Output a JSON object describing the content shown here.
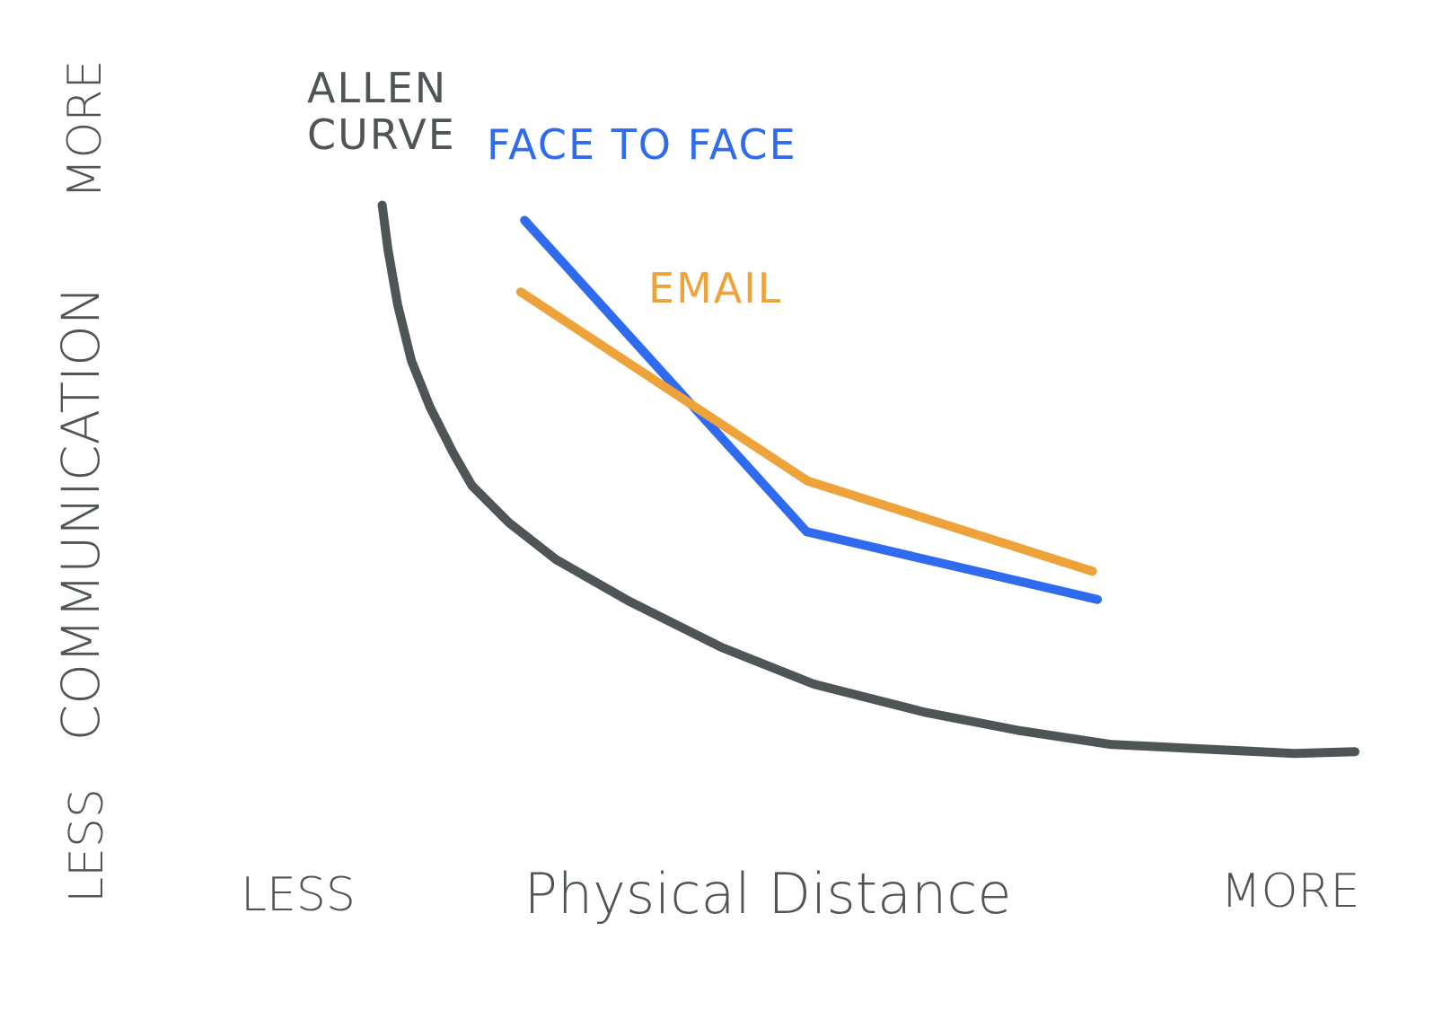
{
  "chart_data": {
    "type": "line",
    "x_label": "Physical Distance",
    "x_low": "LESS",
    "x_high": "MORE",
    "y_label": "COMMUNICATION",
    "y_low": "LESS",
    "y_high": "MORE",
    "xlim": [
      0,
      100
    ],
    "ylim": [
      0,
      100
    ],
    "series": [
      {
        "name": "ALLEN CURVE",
        "color": "#4f5557",
        "x": [
          0.3,
          0.9,
          1.9,
          3.3,
          5.2,
          7.6,
          9.5,
          13.3,
          18.1,
          25.6,
          35.1,
          44.5,
          55.9,
          65.4,
          74.9,
          84.4,
          93.8,
          100
        ],
        "values": [
          99.7,
          91.8,
          82.0,
          72.1,
          63.9,
          55.7,
          50.0,
          43.4,
          36.9,
          29.5,
          21.3,
          14.8,
          9.8,
          6.6,
          4.1,
          3.3,
          2.5,
          2.8
        ]
      },
      {
        "name": "FACE TO FACE",
        "color": "#2f6bef",
        "x": [
          14.9,
          43.8,
          73.6
        ],
        "values": [
          97.0,
          41.8,
          29.8
        ]
      },
      {
        "name": "EMAIL",
        "color": "#eea23a",
        "x": [
          14.5,
          43.9,
          73.1
        ],
        "values": [
          84.3,
          50.8,
          34.8
        ]
      }
    ]
  }
}
